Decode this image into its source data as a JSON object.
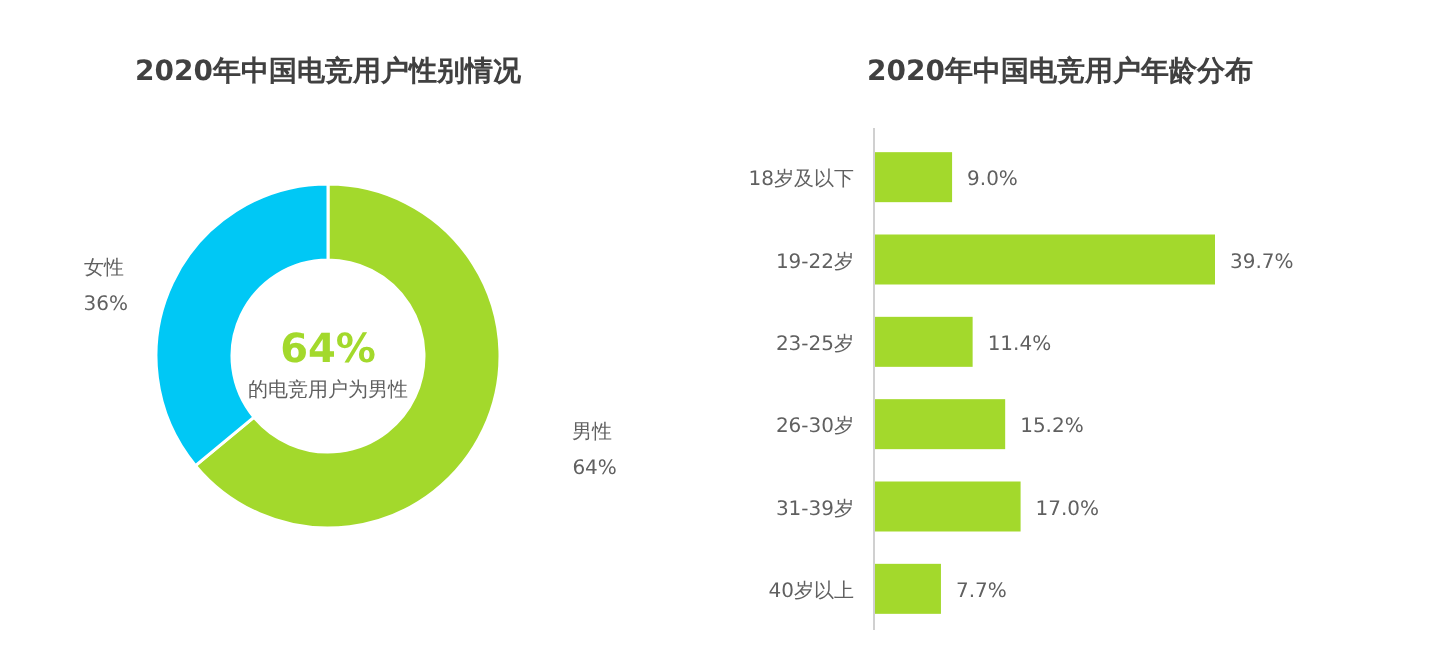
{
  "chart_data": [
    {
      "type": "donut",
      "title": "2020年中国电竞用户性别情况",
      "categories": [
        "男性",
        "女性"
      ],
      "values": [
        64,
        36
      ],
      "colors": [
        "#a3d92c",
        "#00c8f5"
      ],
      "value_labels": [
        "64%",
        "36%"
      ],
      "annotations": [
        "64%",
        "的电竞用户为男性"
      ]
    },
    {
      "type": "bar",
      "orientation": "horizontal",
      "title": "2020年中国电竞用户年龄分布",
      "categories": [
        "18岁及以下",
        "19-22岁",
        "23-25岁",
        "26-30岁",
        "31-39岁",
        "40岁以上"
      ],
      "values": [
        9.0,
        39.7,
        11.4,
        15.2,
        17.0,
        7.7
      ],
      "color": "#a3d92c",
      "value_labels": [
        "9.0%",
        "39.7%",
        "11.4%",
        "15.2%",
        "17.0%",
        "7.7%"
      ]
    }
  ]
}
